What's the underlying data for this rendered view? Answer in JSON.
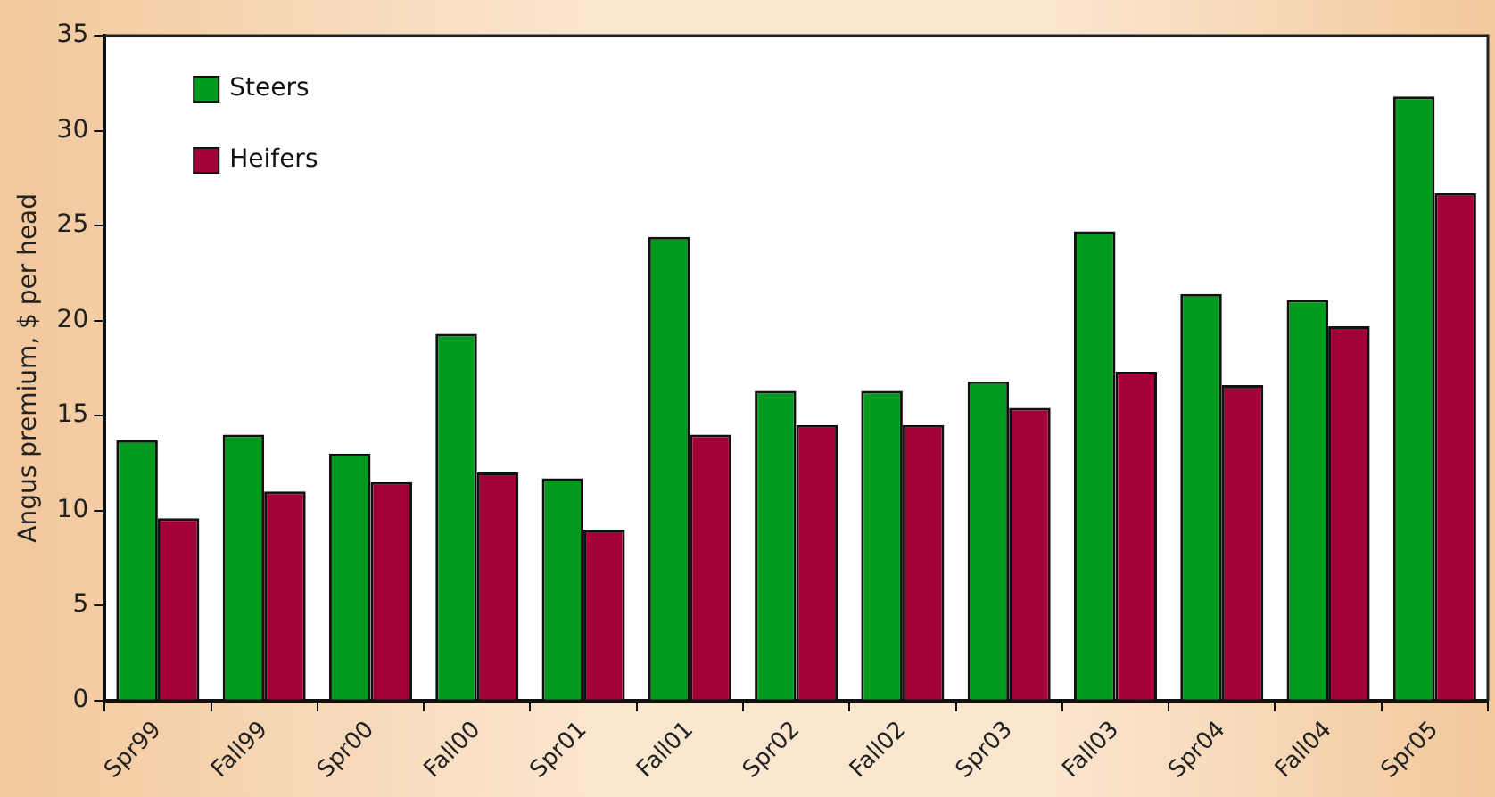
{
  "chart_data": {
    "type": "bar",
    "ylabel": "Angus premium, $ per head",
    "categories": [
      "Spr99",
      "Fall99",
      "Spr00",
      "Fall00",
      "Spr01",
      "Fall01",
      "Spr02",
      "Fall02",
      "Spr03",
      "Fall03",
      "Spr04",
      "Fall04",
      "Spr05"
    ],
    "series": [
      {
        "name": "Steers",
        "color": "#009a1c",
        "values": [
          13.7,
          14,
          13,
          19.3,
          11.7,
          24.4,
          16.3,
          16.3,
          16.8,
          24.7,
          21.4,
          21.1,
          31.8
        ]
      },
      {
        "name": "Heifers",
        "color": "#a3003a",
        "values": [
          9.6,
          11,
          11.5,
          12,
          9,
          14,
          14.5,
          14.5,
          15.4,
          17.3,
          16.6,
          19.7,
          26.7
        ]
      }
    ],
    "ylim": [
      0,
      35
    ],
    "yticks": [
      0,
      5,
      10,
      15,
      20,
      25,
      30,
      35
    ],
    "grid": false,
    "legend": "top left"
  }
}
